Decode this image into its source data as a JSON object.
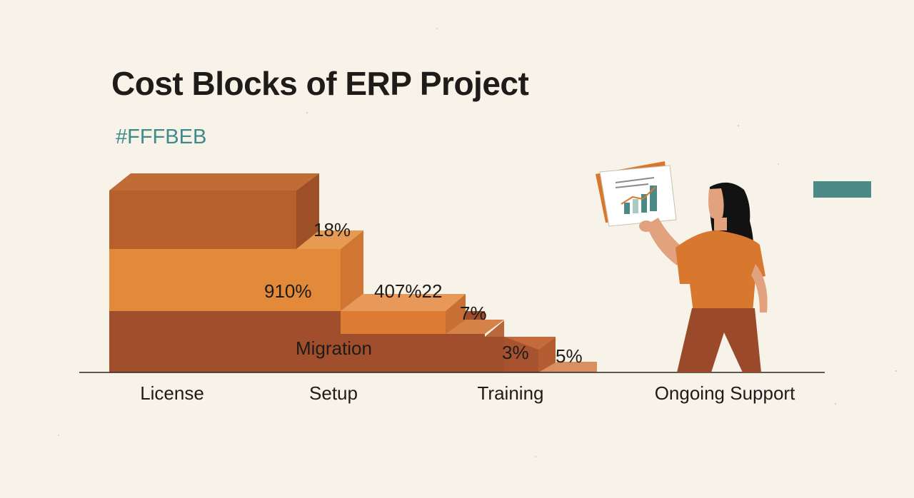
{
  "header": {
    "title": "Cost Blocks of ERP Project",
    "subtitle": "#FFFBEB"
  },
  "colors": {
    "background": "#f8f3e9",
    "accent": "#4b8a86",
    "block_top": "#b7602b",
    "block_middle": "#e28a3a",
    "block_bottom": "#a14e2c",
    "person_shirt": "#d8782f",
    "person_pants": "#9a4a2b"
  },
  "chart_data": {
    "type": "bar",
    "categories": [
      "License",
      "Setup",
      "Training",
      "Ongoing Support"
    ],
    "annotations": [
      "18%",
      "910%",
      "407%22",
      "7%",
      "Migration",
      "3%",
      "5%"
    ],
    "ylim": null,
    "grid": false,
    "legend": "none"
  },
  "illustration": {
    "person": "woman-holding-report-icon",
    "report": "growth-chart-report-icon"
  }
}
